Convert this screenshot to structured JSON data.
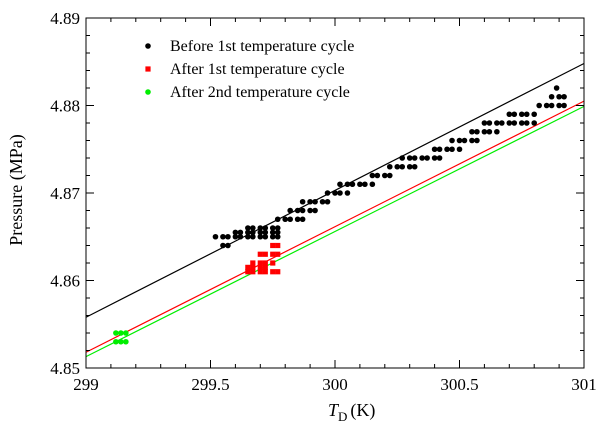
{
  "chart_data": {
    "type": "scatter",
    "title": "",
    "xlabel": {
      "symbol": "T",
      "subscript": "D",
      "unit": "(K)"
    },
    "ylabel": "Pressure (MPa)",
    "xlim": [
      299,
      301
    ],
    "ylim": [
      4.85,
      4.89
    ],
    "xticks": [
      299,
      299.5,
      300,
      300.5,
      301
    ],
    "xtick_labels": [
      "299",
      "299.5",
      "300",
      "300.5",
      "301"
    ],
    "yticks": [
      4.85,
      4.86,
      4.87,
      4.88,
      4.89
    ],
    "ytick_labels": [
      "4.85",
      "4.86",
      "4.87",
      "4.88",
      "4.89"
    ],
    "grid": false,
    "legend_position": "top-left",
    "series": [
      {
        "name": "Before 1st temperature cycle",
        "color": "#000000",
        "marker": "circle",
        "x": [
          299.52,
          299.55,
          299.57,
          299.6,
          299.62,
          299.65,
          299.67,
          299.7,
          299.72,
          299.75,
          299.77,
          299.55,
          299.57,
          299.6,
          299.62,
          299.65,
          299.67,
          299.7,
          299.72,
          299.75,
          299.77,
          299.65,
          299.67,
          299.7,
          299.72,
          299.75,
          299.77,
          299.77,
          299.8,
          299.82,
          299.85,
          299.87,
          299.82,
          299.85,
          299.87,
          299.9,
          299.92,
          299.87,
          299.9,
          299.92,
          299.95,
          299.97,
          299.97,
          300.0,
          300.02,
          300.05,
          300.02,
          300.05,
          300.07,
          300.1,
          300.12,
          300.15,
          300.15,
          300.17,
          300.2,
          300.22,
          300.22,
          300.25,
          300.27,
          300.3,
          300.32,
          300.27,
          300.3,
          300.32,
          300.35,
          300.37,
          300.4,
          300.42,
          300.4,
          300.42,
          300.45,
          300.47,
          300.5,
          300.47,
          300.5,
          300.52,
          300.55,
          300.57,
          300.55,
          300.57,
          300.6,
          300.62,
          300.65,
          300.6,
          300.62,
          300.65,
          300.67,
          300.7,
          300.72,
          300.75,
          300.77,
          300.8,
          300.7,
          300.72,
          300.75,
          300.77,
          300.8,
          300.82,
          300.85,
          300.87,
          300.9,
          300.92,
          300.87,
          300.9,
          300.92,
          300.89
        ],
        "y": [
          4.865,
          4.865,
          4.865,
          4.865,
          4.865,
          4.865,
          4.865,
          4.865,
          4.865,
          4.865,
          4.865,
          4.864,
          4.864,
          4.8655,
          4.8655,
          4.8655,
          4.8655,
          4.8655,
          4.8655,
          4.8655,
          4.8655,
          4.866,
          4.866,
          4.866,
          4.866,
          4.866,
          4.866,
          4.867,
          4.867,
          4.867,
          4.867,
          4.867,
          4.868,
          4.868,
          4.868,
          4.868,
          4.868,
          4.869,
          4.869,
          4.869,
          4.869,
          4.869,
          4.87,
          4.87,
          4.87,
          4.87,
          4.871,
          4.871,
          4.871,
          4.871,
          4.871,
          4.871,
          4.872,
          4.872,
          4.872,
          4.872,
          4.873,
          4.873,
          4.873,
          4.873,
          4.873,
          4.874,
          4.874,
          4.874,
          4.874,
          4.874,
          4.874,
          4.874,
          4.875,
          4.875,
          4.875,
          4.875,
          4.875,
          4.876,
          4.876,
          4.876,
          4.876,
          4.876,
          4.877,
          4.877,
          4.877,
          4.877,
          4.877,
          4.878,
          4.878,
          4.878,
          4.878,
          4.878,
          4.878,
          4.878,
          4.878,
          4.878,
          4.879,
          4.879,
          4.879,
          4.879,
          4.879,
          4.88,
          4.88,
          4.88,
          4.88,
          4.88,
          4.881,
          4.881,
          4.881,
          4.882
        ]
      },
      {
        "name": "After 1st temperature cycle",
        "color": "#ff0000",
        "marker": "square",
        "x": [
          299.65,
          299.67,
          299.7,
          299.72,
          299.75,
          299.77,
          299.67,
          299.7,
          299.72,
          299.75,
          299.7,
          299.72,
          299.75,
          299.77,
          299.75,
          299.77,
          299.65,
          299.67,
          299.7,
          299.72
        ],
        "y": [
          4.861,
          4.861,
          4.861,
          4.861,
          4.861,
          4.861,
          4.862,
          4.862,
          4.862,
          4.862,
          4.863,
          4.863,
          4.863,
          4.863,
          4.864,
          4.864,
          4.8615,
          4.8615,
          4.8615,
          4.8615
        ]
      },
      {
        "name": "After 2nd temperature cycle",
        "color": "#00ee00",
        "marker": "circle",
        "x": [
          299.12,
          299.14,
          299.16,
          299.12,
          299.14,
          299.16
        ],
        "y": [
          4.854,
          4.854,
          4.854,
          4.853,
          4.853,
          4.853
        ]
      }
    ],
    "fit_lines": [
      {
        "series": "Before 1st temperature cycle",
        "color": "#000000",
        "x": [
          299,
          301
        ],
        "y": [
          4.8558,
          4.8848
        ]
      },
      {
        "series": "After 1st temperature cycle",
        "color": "#ff0000",
        "x": [
          299,
          301
        ],
        "y": [
          4.8518,
          4.8805
        ]
      },
      {
        "series": "After 2nd temperature cycle",
        "color": "#00ee00",
        "x": [
          299,
          301
        ],
        "y": [
          4.8513,
          4.8799
        ]
      }
    ]
  }
}
